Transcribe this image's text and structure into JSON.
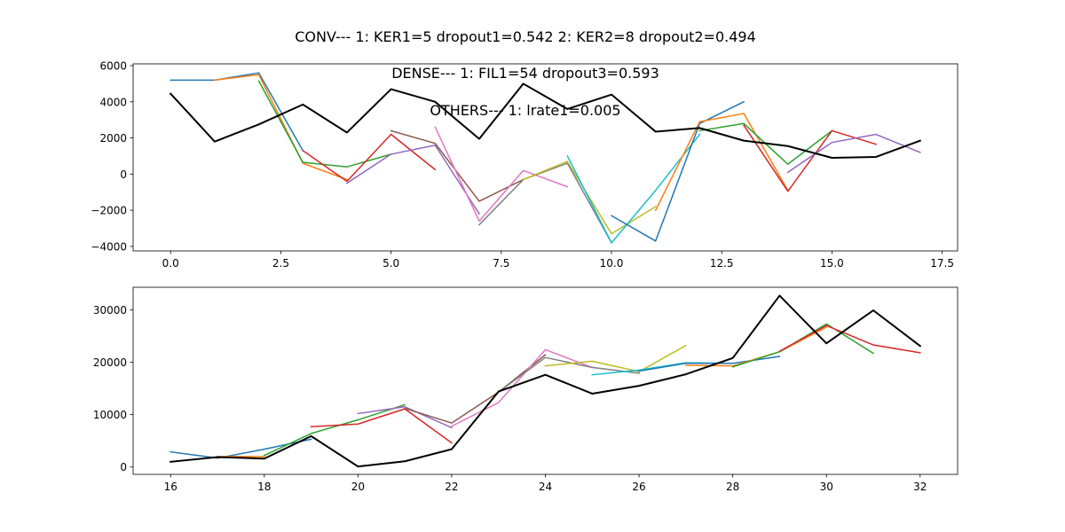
{
  "figure": {
    "title": "CONV--- 1: KER1=5   dropout1=0.542   2: KER2=8   dropout2=0.494",
    "annotations": [
      "DENSE--- 1: FIL1=54   dropout3=0.593",
      "OTHERS--- 1: lrate1=0.005"
    ]
  },
  "colors": {
    "palette": [
      "#1f77b4",
      "#ff7f0e",
      "#2ca02c",
      "#d62728",
      "#9467bd",
      "#8c564b",
      "#e377c2",
      "#7f7f7f",
      "#bcbd22",
      "#17becf"
    ],
    "actual": "#000000"
  },
  "chart_data": [
    {
      "type": "line",
      "xlim": [
        -0.85,
        17.85
      ],
      "ylim": [
        -4250,
        6100
      ],
      "xticks": [
        0.0,
        2.5,
        5.0,
        7.5,
        10.0,
        12.5,
        15.0,
        17.5
      ],
      "xtick_labels": [
        "0.0",
        "2.5",
        "5.0",
        "7.5",
        "10.0",
        "12.5",
        "15.0",
        "17.5"
      ],
      "yticks": [
        -4000,
        -2000,
        0,
        2000,
        4000,
        6000
      ],
      "ytick_labels": [
        "−4000",
        "−2000",
        "0",
        "2000",
        "4000",
        "6000"
      ],
      "grid": false,
      "series": [
        {
          "x": [
            0,
            1,
            2,
            3
          ],
          "values": [
            5200,
            5200,
            5600,
            1300
          ]
        },
        {
          "x": [
            1,
            2,
            3,
            4
          ],
          "values": [
            5200,
            5500,
            600,
            -300
          ]
        },
        {
          "x": [
            2,
            3,
            4,
            5
          ],
          "values": [
            5150,
            650,
            400,
            1100
          ]
        },
        {
          "x": [
            3,
            4,
            5,
            6
          ],
          "values": [
            1300,
            -400,
            2200,
            250
          ]
        },
        {
          "x": [
            4,
            5,
            6,
            7
          ],
          "values": [
            -500,
            1100,
            1600,
            -2200
          ]
        },
        {
          "x": [
            5,
            6,
            7,
            8
          ],
          "values": [
            2400,
            1700,
            -1500,
            -300
          ]
        },
        {
          "x": [
            6,
            7,
            8,
            9
          ],
          "values": [
            2600,
            -2600,
            200,
            -700
          ]
        },
        {
          "x": [
            7,
            8,
            9,
            10
          ],
          "values": [
            -2800,
            -300,
            600,
            -3800
          ]
        },
        {
          "x": [
            8,
            9,
            10,
            11
          ],
          "values": [
            -300,
            700,
            -3300,
            -1800
          ]
        },
        {
          "x": [
            9,
            10,
            11,
            12
          ],
          "values": [
            1000,
            -3800,
            -900,
            2200
          ]
        },
        {
          "x": [
            10,
            11,
            12,
            13
          ],
          "values": [
            -2300,
            -3700,
            2800,
            4000
          ]
        },
        {
          "x": [
            11,
            12,
            13,
            14
          ],
          "values": [
            -2000,
            2900,
            3350,
            -900
          ]
        },
        {
          "x": [
            12,
            13,
            14,
            15
          ],
          "values": [
            2400,
            2800,
            550,
            2400
          ]
        },
        {
          "x": [
            13,
            14,
            15,
            16
          ],
          "values": [
            2700,
            -950,
            2400,
            1650
          ]
        },
        {
          "x": [
            14,
            15,
            16,
            17
          ],
          "values": [
            100,
            1750,
            2200,
            1200
          ]
        }
      ],
      "actual": {
        "x": [
          0,
          1,
          2,
          3,
          4,
          5,
          6,
          7,
          8,
          9,
          10,
          11,
          12,
          13,
          14,
          15,
          16,
          17
        ],
        "values": [
          4450,
          1800,
          2750,
          3850,
          2300,
          4700,
          4000,
          1950,
          5000,
          3600,
          4400,
          2350,
          2550,
          1850,
          1550,
          900,
          950,
          1850
        ]
      }
    },
    {
      "type": "line",
      "xlim": [
        15.2,
        32.8
      ],
      "ylim": [
        -1400,
        34300
      ],
      "xticks": [
        16,
        18,
        20,
        22,
        24,
        26,
        28,
        30,
        32
      ],
      "xtick_labels": [
        "16",
        "18",
        "20",
        "22",
        "24",
        "26",
        "28",
        "30",
        "32"
      ],
      "yticks": [
        0,
        10000,
        20000,
        30000
      ],
      "ytick_labels": [
        "0",
        "10000",
        "20000",
        "30000"
      ],
      "grid": false,
      "series": [
        {
          "x": [
            16,
            17,
            18,
            19
          ],
          "values": [
            2900,
            1700,
            3400,
            5300
          ]
        },
        {
          "x": [
            17,
            18
          ],
          "values": [
            2000,
            2000
          ]
        },
        {
          "x": [
            18,
            19,
            20,
            21
          ],
          "values": [
            2200,
            6400,
            9000,
            11900
          ]
        },
        {
          "x": [
            19,
            20,
            21,
            22
          ],
          "values": [
            7700,
            8200,
            11100,
            4600
          ]
        },
        {
          "x": [
            20,
            21,
            22
          ],
          "values": [
            10200,
            11500,
            7500
          ]
        },
        {
          "x": [
            21,
            22,
            23,
            24
          ],
          "values": [
            11200,
            8400,
            14300,
            21400
          ]
        },
        {
          "x": [
            22,
            23,
            24,
            25
          ],
          "values": [
            7800,
            12300,
            22400,
            19000
          ]
        },
        {
          "x": [
            23,
            24,
            25,
            26
          ],
          "values": [
            14300,
            20900,
            19000,
            17900
          ]
        },
        {
          "x": [
            24,
            25,
            26,
            27
          ],
          "values": [
            19300,
            20200,
            18200,
            23200
          ]
        },
        {
          "x": [
            25,
            26,
            27,
            28
          ],
          "values": [
            17600,
            18500,
            19900,
            19800
          ]
        },
        {
          "x": [
            26,
            27,
            28,
            29
          ],
          "values": [
            18300,
            19800,
            19800,
            21100
          ]
        },
        {
          "x": [
            27,
            28,
            29,
            30
          ],
          "values": [
            19400,
            19300,
            22000,
            26700
          ]
        },
        {
          "x": [
            28,
            29,
            30,
            31
          ],
          "values": [
            19100,
            22000,
            27300,
            21700
          ]
        },
        {
          "x": [
            29,
            30,
            31,
            32
          ],
          "values": [
            22100,
            27000,
            23300,
            21800
          ]
        }
      ],
      "actual": {
        "x": [
          16,
          17,
          18,
          19,
          20,
          21,
          22,
          23,
          24,
          25,
          26,
          27,
          28,
          29,
          30,
          31,
          32
        ],
        "values": [
          1000,
          1900,
          1600,
          5900,
          100,
          1100,
          3400,
          14400,
          17600,
          14000,
          15500,
          17700,
          20800,
          32700,
          23600,
          29900,
          23100
        ]
      }
    }
  ]
}
